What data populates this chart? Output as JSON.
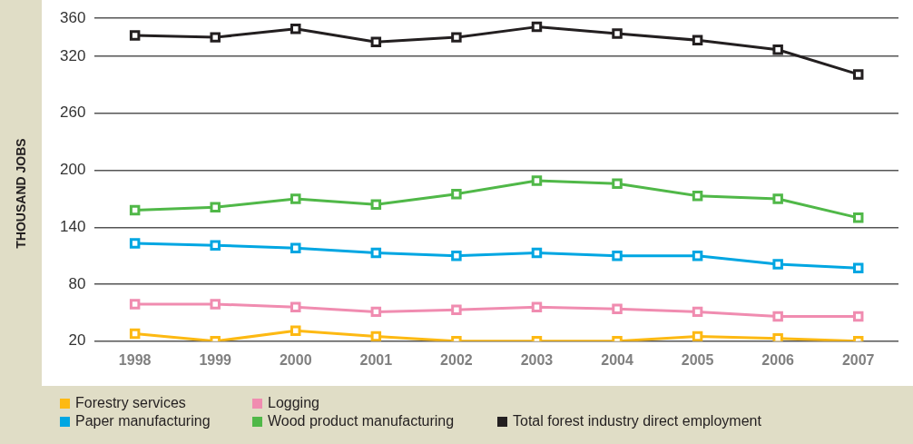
{
  "chart_data": {
    "type": "line",
    "ylabel": "THOUSAND JOBS",
    "categories": [
      "1998",
      "1999",
      "2000",
      "2001",
      "2002",
      "2003",
      "2004",
      "2005",
      "2006",
      "2007"
    ],
    "series": [
      {
        "name": "Forestry services",
        "color": "#fdb913",
        "values": [
          28,
          20,
          31,
          25,
          20,
          20,
          20,
          25,
          23,
          20
        ]
      },
      {
        "name": "Logging",
        "color": "#f08cb0",
        "values": [
          59,
          59,
          56,
          51,
          53,
          56,
          54,
          51,
          46,
          46
        ]
      },
      {
        "name": "Paper manufacturing",
        "color": "#00a6e2",
        "values": [
          123,
          121,
          118,
          113,
          110,
          113,
          110,
          110,
          101,
          97
        ]
      },
      {
        "name": "Wood product manufacturing",
        "color": "#50b848",
        "values": [
          158,
          161,
          170,
          164,
          175,
          189,
          186,
          173,
          170,
          150
        ]
      },
      {
        "name": "Total forest industry direct employment",
        "color": "#231f20",
        "values": [
          342,
          340,
          349,
          335,
          340,
          351,
          344,
          337,
          327,
          301
        ]
      }
    ],
    "ylim": [
      20,
      360
    ],
    "yticks": [
      20,
      80,
      140,
      200,
      260,
      320,
      360
    ],
    "grid": "y",
    "legend": "bottom",
    "marker": "square",
    "line_style": "solid"
  }
}
